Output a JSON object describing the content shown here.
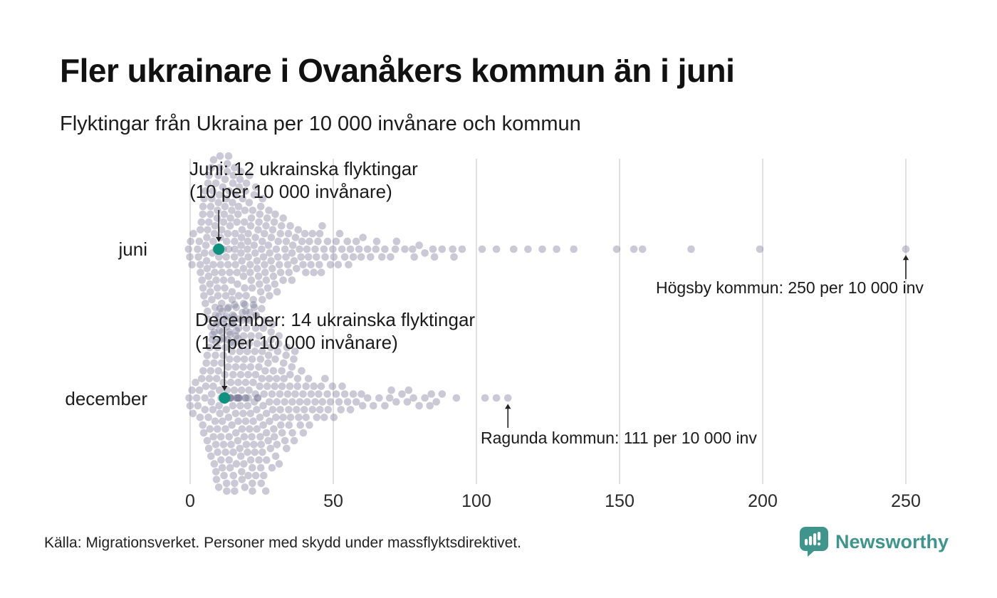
{
  "header": {
    "title": "Fler ukrainare i Ovanåkers kommun än i juni",
    "subtitle": "Flyktingar från Ukraina per 10 000 invånare och kommun"
  },
  "footer": {
    "source": "Källa: Migrationsverket. Personer med skydd under massflyktsdirektivet.",
    "brand": "Newsworthy"
  },
  "colors": {
    "dot": "#807e9a",
    "dot_opacity": 0.42,
    "highlight": "#10917f",
    "grid": "#d7d6da",
    "axis_text": "#2a2a2a",
    "arrow": "#222222",
    "brand": "#3f948b"
  },
  "chart_data": {
    "type": "beeswarm",
    "title": "Flyktingar från Ukraina per 10 000 invånare och kommun",
    "x_unit": "flyktingar per 10 000 invånare",
    "x_ticks": [
      0,
      50,
      100,
      150,
      200,
      250
    ],
    "x_range": [
      0,
      258
    ],
    "grid": true,
    "rows": [
      {
        "label": "juni",
        "highlight": {
          "value": 10,
          "line1": "Juni: 12 ukrainska flyktingar",
          "line2": "(10 per 10 000 invånare)"
        },
        "outlier": {
          "value": 250,
          "label": "Högsby kommun: 250 per 10 000 inv"
        },
        "hist": [
          [
            0.3,
            5
          ],
          [
            3,
            3
          ],
          [
            4,
            5
          ],
          [
            5,
            7
          ],
          [
            6,
            8
          ],
          [
            7,
            9
          ],
          [
            8,
            10
          ],
          [
            9,
            10
          ],
          [
            10,
            10
          ],
          [
            11,
            10
          ],
          [
            12,
            10
          ],
          [
            13,
            10
          ],
          [
            14,
            9
          ],
          [
            15,
            9
          ],
          [
            16,
            8
          ],
          [
            17,
            8
          ],
          [
            18,
            8
          ],
          [
            19,
            7
          ],
          [
            20,
            7
          ],
          [
            21,
            7
          ],
          [
            22,
            6
          ],
          [
            23,
            6
          ],
          [
            24,
            6
          ],
          [
            25,
            5
          ],
          [
            26,
            5
          ],
          [
            27,
            5
          ],
          [
            28,
            4
          ],
          [
            29,
            4
          ],
          [
            30,
            4
          ],
          [
            31,
            4
          ],
          [
            32,
            3
          ],
          [
            33,
            3
          ],
          [
            34,
            3
          ],
          [
            35,
            3
          ],
          [
            36,
            3
          ],
          [
            37,
            2
          ],
          [
            38,
            2
          ],
          [
            39,
            2
          ],
          [
            40,
            3
          ],
          [
            41,
            2
          ],
          [
            42,
            2
          ],
          [
            43,
            2
          ],
          [
            44,
            2
          ],
          [
            45,
            3
          ],
          [
            46,
            2
          ],
          [
            47,
            2
          ],
          [
            48,
            1
          ],
          [
            49,
            1
          ],
          [
            50,
            2
          ],
          [
            51,
            1
          ],
          [
            52,
            2
          ],
          [
            53,
            1
          ],
          [
            54,
            1
          ],
          [
            55,
            2
          ],
          [
            56,
            1
          ],
          [
            57,
            1
          ],
          [
            58,
            1
          ],
          [
            59,
            1
          ],
          [
            60,
            2
          ],
          [
            62,
            1
          ],
          [
            63,
            1
          ],
          [
            65,
            2
          ],
          [
            67,
            1
          ],
          [
            68,
            1
          ],
          [
            70,
            1
          ],
          [
            72,
            2
          ],
          [
            75,
            1
          ],
          [
            78,
            2
          ],
          [
            80,
            1
          ],
          [
            82,
            1
          ],
          [
            85,
            2
          ],
          [
            88,
            1
          ],
          [
            92,
            2
          ],
          [
            95,
            1
          ],
          [
            102,
            1
          ],
          [
            107,
            1
          ],
          [
            113,
            1
          ],
          [
            118,
            1
          ],
          [
            123,
            1
          ],
          [
            128,
            1
          ],
          [
            134,
            1
          ],
          [
            149,
            1
          ],
          [
            155,
            1
          ],
          [
            158,
            1
          ],
          [
            175,
            1
          ],
          [
            199,
            1
          ],
          [
            250,
            1
          ]
        ]
      },
      {
        "label": "december",
        "highlight": {
          "value": 12,
          "line1": "December: 14 ukrainska flyktingar",
          "line2": "(12 per 10 000 invånare)"
        },
        "outlier": {
          "value": 111,
          "label": "Ragunda kommun: 111 per 10 000 inv"
        },
        "hist": [
          [
            0.3,
            4
          ],
          [
            2,
            2
          ],
          [
            3,
            2
          ],
          [
            4,
            3
          ],
          [
            5,
            4
          ],
          [
            6,
            5
          ],
          [
            7,
            6
          ],
          [
            8,
            7
          ],
          [
            9,
            8
          ],
          [
            10,
            9
          ],
          [
            11,
            10
          ],
          [
            12,
            10
          ],
          [
            13,
            11
          ],
          [
            14,
            11
          ],
          [
            15,
            11
          ],
          [
            16,
            11
          ],
          [
            17,
            10
          ],
          [
            18,
            10
          ],
          [
            19,
            10
          ],
          [
            20,
            10
          ],
          [
            21,
            10
          ],
          [
            22,
            9
          ],
          [
            23,
            9
          ],
          [
            24,
            9
          ],
          [
            25,
            8
          ],
          [
            26,
            8
          ],
          [
            27,
            8
          ],
          [
            28,
            7
          ],
          [
            29,
            7
          ],
          [
            30,
            6
          ],
          [
            31,
            6
          ],
          [
            32,
            5
          ],
          [
            33,
            5
          ],
          [
            34,
            5
          ],
          [
            35,
            4
          ],
          [
            36,
            4
          ],
          [
            37,
            4
          ],
          [
            38,
            3
          ],
          [
            39,
            3
          ],
          [
            40,
            3
          ],
          [
            41,
            3
          ],
          [
            42,
            2
          ],
          [
            43,
            2
          ],
          [
            44,
            2
          ],
          [
            45,
            2
          ],
          [
            46,
            2
          ],
          [
            47,
            2
          ],
          [
            48,
            2
          ],
          [
            49,
            1
          ],
          [
            50,
            2
          ],
          [
            51,
            1
          ],
          [
            52,
            1
          ],
          [
            53,
            2
          ],
          [
            54,
            1
          ],
          [
            55,
            1
          ],
          [
            56,
            1
          ],
          [
            57,
            1
          ],
          [
            58,
            1
          ],
          [
            60,
            2
          ],
          [
            62,
            1
          ],
          [
            64,
            1
          ],
          [
            66,
            1
          ],
          [
            68,
            1
          ],
          [
            70,
            2
          ],
          [
            72,
            1
          ],
          [
            74,
            1
          ],
          [
            76,
            2
          ],
          [
            78,
            1
          ],
          [
            80,
            1
          ],
          [
            82,
            1
          ],
          [
            84,
            2
          ],
          [
            86,
            1
          ],
          [
            88,
            1
          ],
          [
            93,
            1
          ],
          [
            103,
            1
          ],
          [
            107,
            1
          ],
          [
            111,
            1
          ]
        ]
      }
    ]
  }
}
